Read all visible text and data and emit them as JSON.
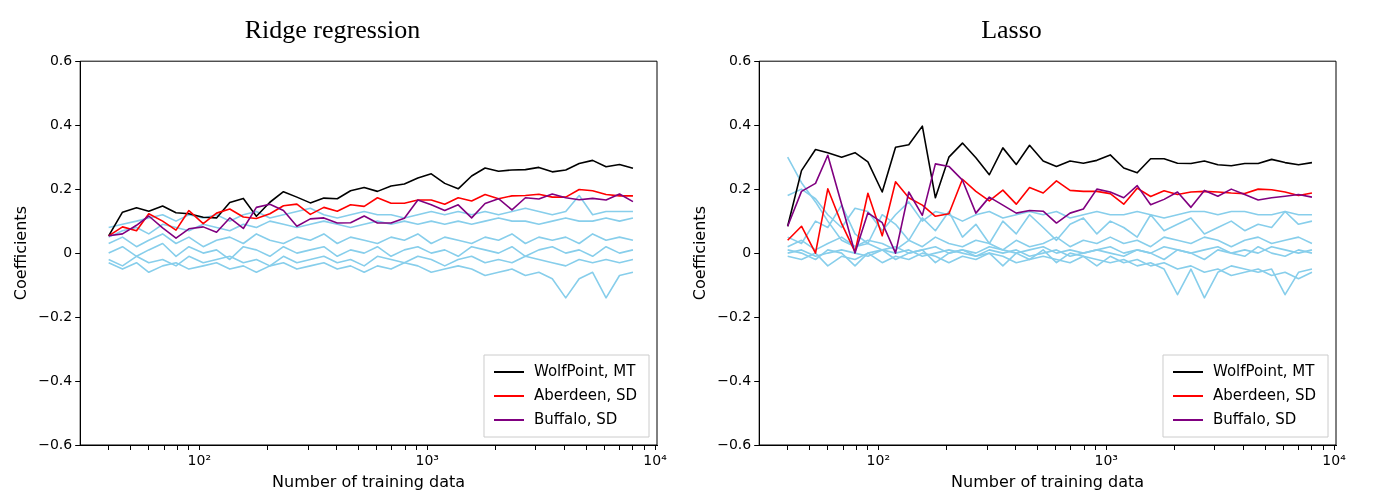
{
  "chart_data": [
    {
      "type": "line",
      "title": "Ridge regression",
      "xlabel": "Number of training data",
      "ylabel": "Coefficients",
      "log": "x",
      "legend": "bottom right",
      "x": [
        40,
        46,
        53,
        60,
        69,
        79,
        90,
        104,
        119,
        136,
        156,
        178,
        204,
        234,
        268,
        307,
        352,
        403,
        461,
        529,
        605,
        694,
        794,
        910,
        1042,
        1194,
        1368,
        1567,
        1795,
        2056,
        2355,
        2698,
        3091,
        3540,
        4056,
        4646,
        5322,
        6096,
        6984,
        8000
      ],
      "xlim": [
        30,
        10200
      ],
      "xticks": [
        {
          "value": 40,
          "label": null
        },
        {
          "value": 50,
          "label": null
        },
        {
          "value": 60,
          "label": null
        },
        {
          "value": 70,
          "label": null
        },
        {
          "value": 80,
          "label": null
        },
        {
          "value": 90,
          "label": null
        },
        {
          "value": 100,
          "label": "10²"
        },
        {
          "value": 200,
          "label": null
        },
        {
          "value": 300,
          "label": null
        },
        {
          "value": 400,
          "label": null
        },
        {
          "value": 500,
          "label": null
        },
        {
          "value": 600,
          "label": null
        },
        {
          "value": 700,
          "label": null
        },
        {
          "value": 800,
          "label": null
        },
        {
          "value": 900,
          "label": null
        },
        {
          "value": 1000,
          "label": "10³"
        },
        {
          "value": 2000,
          "label": null
        },
        {
          "value": 3000,
          "label": null
        },
        {
          "value": 4000,
          "label": null
        },
        {
          "value": 5000,
          "label": null
        },
        {
          "value": 6000,
          "label": null
        },
        {
          "value": 7000,
          "label": null
        },
        {
          "value": 8000,
          "label": null
        },
        {
          "value": 9000,
          "label": null
        },
        {
          "value": 10000,
          "label": "10⁴"
        }
      ],
      "ylim": [
        -0.6,
        0.6
      ],
      "yticks": [
        {
          "value": -0.6,
          "label": "−0.6"
        },
        {
          "value": -0.4,
          "label": "−0.4"
        },
        {
          "value": -0.2,
          "label": "−0.2"
        },
        0.0,
        0.2,
        0.4,
        0.6
      ],
      "series": [
        {
          "color": "#87ceeb",
          "values": [
            0.08,
            0.09,
            0.1,
            0.11,
            0.12,
            0.1,
            0.12,
            0.11,
            0.12,
            0.1,
            0.12,
            0.13,
            0.11,
            0.12,
            0.13,
            0.14,
            0.12,
            0.11,
            0.12,
            0.13,
            0.12,
            0.12,
            0.11,
            0.12,
            0.13,
            0.12,
            0.13,
            0.12,
            0.13,
            0.12,
            0.13,
            0.14,
            0.13,
            0.12,
            0.13,
            0.18,
            0.12,
            0.13,
            0.13,
            0.13
          ]
        },
        {
          "color": "#87ceeb",
          "values": [
            0.05,
            0.07,
            0.08,
            0.06,
            0.09,
            0.08,
            0.07,
            0.09,
            0.08,
            0.07,
            0.09,
            0.08,
            0.1,
            0.09,
            0.08,
            0.09,
            0.1,
            0.09,
            0.08,
            0.09,
            0.1,
            0.09,
            0.1,
            0.09,
            0.1,
            0.09,
            0.1,
            0.09,
            0.1,
            0.11,
            0.1,
            0.1,
            0.09,
            0.1,
            0.11,
            0.1,
            0.1,
            0.11,
            0.1,
            0.11
          ]
        },
        {
          "color": "#87ceeb",
          "values": [
            0.03,
            0.05,
            0.02,
            0.04,
            0.06,
            0.03,
            0.05,
            0.02,
            0.04,
            0.05,
            0.03,
            0.06,
            0.04,
            0.03,
            0.05,
            0.04,
            0.06,
            0.03,
            0.05,
            0.04,
            0.03,
            0.05,
            0.04,
            0.06,
            0.03,
            0.05,
            0.04,
            0.03,
            0.05,
            0.04,
            0.06,
            0.03,
            0.05,
            0.04,
            0.05,
            0.03,
            0.06,
            0.04,
            0.05,
            0.04
          ]
        },
        {
          "color": "#87ceeb",
          "values": [
            0.0,
            0.02,
            -0.01,
            0.01,
            0.03,
            -0.01,
            0.02,
            0.0,
            0.01,
            -0.02,
            0.02,
            0.01,
            -0.01,
            0.02,
            0.0,
            0.01,
            0.02,
            -0.01,
            0.01,
            0.0,
            0.02,
            -0.01,
            0.01,
            0.02,
            0.0,
            0.01,
            -0.01,
            0.02,
            0.01,
            0.0,
            0.02,
            -0.01,
            0.01,
            0.02,
            0.0,
            0.01,
            -0.01,
            0.02,
            0.0,
            0.01
          ]
        },
        {
          "color": "#87ceeb",
          "values": [
            -0.02,
            -0.04,
            -0.01,
            -0.03,
            -0.02,
            -0.04,
            -0.01,
            -0.03,
            -0.02,
            -0.01,
            -0.03,
            -0.02,
            -0.04,
            -0.01,
            -0.03,
            -0.02,
            -0.01,
            -0.03,
            -0.02,
            -0.04,
            -0.01,
            -0.02,
            -0.03,
            -0.01,
            -0.02,
            -0.04,
            -0.02,
            -0.01,
            -0.03,
            -0.02,
            -0.03,
            -0.01,
            -0.02,
            -0.03,
            -0.04,
            -0.02,
            -0.03,
            -0.02,
            -0.03,
            -0.02
          ]
        },
        {
          "color": "#87ceeb",
          "values": [
            -0.03,
            -0.05,
            -0.03,
            -0.06,
            -0.04,
            -0.03,
            -0.05,
            -0.04,
            -0.03,
            -0.05,
            -0.04,
            -0.06,
            -0.04,
            -0.03,
            -0.05,
            -0.04,
            -0.03,
            -0.05,
            -0.04,
            -0.06,
            -0.04,
            -0.05,
            -0.03,
            -0.04,
            -0.06,
            -0.05,
            -0.04,
            -0.05,
            -0.07,
            -0.06,
            -0.05,
            -0.07,
            -0.06,
            -0.08,
            -0.14,
            -0.08,
            -0.06,
            -0.14,
            -0.07,
            -0.06
          ]
        },
        {
          "color": "#000000",
          "name": "WolfPoint, MT",
          "values": [
            0.054,
            0.128,
            0.142,
            0.131,
            0.147,
            0.126,
            0.123,
            0.112,
            0.11,
            0.158,
            0.171,
            0.115,
            0.159,
            0.192,
            0.175,
            0.157,
            0.172,
            0.17,
            0.195,
            0.205,
            0.193,
            0.21,
            0.216,
            0.235,
            0.248,
            0.218,
            0.201,
            0.241,
            0.266,
            0.256,
            0.26,
            0.261,
            0.268,
            0.254,
            0.26,
            0.28,
            0.29,
            0.27,
            0.277,
            0.265
          ]
        },
        {
          "color": "#ff0000",
          "name": "Aberdeen, SD",
          "values": [
            0.054,
            0.082,
            0.07,
            0.123,
            0.1,
            0.072,
            0.133,
            0.092,
            0.125,
            0.138,
            0.113,
            0.108,
            0.123,
            0.148,
            0.153,
            0.121,
            0.143,
            0.131,
            0.151,
            0.146,
            0.173,
            0.156,
            0.156,
            0.166,
            0.166,
            0.153,
            0.173,
            0.163,
            0.183,
            0.17,
            0.179,
            0.18,
            0.184,
            0.175,
            0.175,
            0.199,
            0.195,
            0.183,
            0.179,
            0.179
          ]
        },
        {
          "color": "#800080",
          "name": "Buffalo, SD",
          "values": [
            0.054,
            0.06,
            0.087,
            0.116,
            0.079,
            0.047,
            0.076,
            0.082,
            0.065,
            0.11,
            0.077,
            0.143,
            0.153,
            0.133,
            0.084,
            0.107,
            0.11,
            0.094,
            0.095,
            0.116,
            0.094,
            0.094,
            0.109,
            0.166,
            0.151,
            0.133,
            0.151,
            0.11,
            0.155,
            0.17,
            0.135,
            0.173,
            0.169,
            0.185,
            0.173,
            0.167,
            0.171,
            0.166,
            0.185,
            0.161
          ]
        }
      ]
    },
    {
      "type": "line",
      "title": "Lasso",
      "xlabel": "Number of training data",
      "ylabel": "Coefficients",
      "log": "x",
      "legend": "bottom right",
      "x": [
        40,
        46,
        53,
        60,
        69,
        79,
        90,
        104,
        119,
        136,
        156,
        178,
        204,
        234,
        268,
        307,
        352,
        403,
        461,
        529,
        605,
        694,
        794,
        910,
        1042,
        1194,
        1368,
        1567,
        1795,
        2056,
        2355,
        2698,
        3091,
        3540,
        4056,
        4646,
        5322,
        6096,
        6984,
        8000
      ],
      "xlim": [
        30,
        10200
      ],
      "xticks": [
        {
          "value": 40,
          "label": null
        },
        {
          "value": 50,
          "label": null
        },
        {
          "value": 60,
          "label": null
        },
        {
          "value": 70,
          "label": null
        },
        {
          "value": 80,
          "label": null
        },
        {
          "value": 90,
          "label": null
        },
        {
          "value": 100,
          "label": "10²"
        },
        {
          "value": 200,
          "label": null
        },
        {
          "value": 300,
          "label": null
        },
        {
          "value": 400,
          "label": null
        },
        {
          "value": 500,
          "label": null
        },
        {
          "value": 600,
          "label": null
        },
        {
          "value": 700,
          "label": null
        },
        {
          "value": 800,
          "label": null
        },
        {
          "value": 900,
          "label": null
        },
        {
          "value": 1000,
          "label": "10³"
        },
        {
          "value": 2000,
          "label": null
        },
        {
          "value": 3000,
          "label": null
        },
        {
          "value": 4000,
          "label": null
        },
        {
          "value": 5000,
          "label": null
        },
        {
          "value": 6000,
          "label": null
        },
        {
          "value": 7000,
          "label": null
        },
        {
          "value": 8000,
          "label": null
        },
        {
          "value": 9000,
          "label": null
        },
        {
          "value": 10000,
          "label": "10⁴"
        }
      ],
      "ylim": [
        -0.6,
        0.6
      ],
      "yticks": [
        {
          "value": -0.6,
          "label": "−0.6"
        },
        {
          "value": -0.4,
          "label": "−0.4"
        },
        {
          "value": -0.2,
          "label": "−0.2"
        },
        0.0,
        0.2,
        0.4,
        0.6
      ],
      "series": [
        {
          "color": "#87ceeb",
          "values": [
            0.3,
            0.22,
            0.16,
            0.1,
            0.04,
            0.02,
            0.03,
            0.01,
            0.02,
            0.0,
            0.01,
            0.02,
            0.0,
            0.01,
            0.0,
            0.02,
            0.01,
            0.0,
            0.01,
            0.02,
            0.0,
            0.01,
            0.0,
            0.01,
            0.02,
            0.0,
            0.01,
            0.0,
            0.02,
            0.01,
            0.0,
            0.01,
            0.02,
            0.0,
            0.01,
            0.0,
            0.02,
            0.01,
            0.0,
            0.01
          ]
        },
        {
          "color": "#87ceeb",
          "values": [
            0.18,
            0.2,
            0.17,
            0.12,
            0.08,
            0.14,
            0.13,
            0.07,
            0.12,
            0.16,
            0.1,
            0.13,
            0.12,
            0.1,
            0.12,
            0.13,
            0.11,
            0.12,
            0.13,
            0.12,
            0.13,
            0.11,
            0.12,
            0.13,
            0.12,
            0.12,
            0.13,
            0.12,
            0.11,
            0.12,
            0.13,
            0.13,
            0.12,
            0.13,
            0.13,
            0.12,
            0.12,
            0.13,
            0.12,
            0.12
          ]
        },
        {
          "color": "#87ceeb",
          "values": [
            0.05,
            0.03,
            0.1,
            0.08,
            0.15,
            0.06,
            0.03,
            0.12,
            0.09,
            0.04,
            0.11,
            0.07,
            0.13,
            0.05,
            0.09,
            0.03,
            0.1,
            0.06,
            0.12,
            0.08,
            0.04,
            0.09,
            0.11,
            0.06,
            0.1,
            0.08,
            0.05,
            0.12,
            0.07,
            0.09,
            0.11,
            0.06,
            0.08,
            0.1,
            0.07,
            0.09,
            0.08,
            0.13,
            0.09,
            0.1
          ]
        },
        {
          "color": "#87ceeb",
          "values": [
            0.02,
            0.04,
            0.01,
            0.03,
            0.05,
            0.02,
            0.04,
            0.03,
            0.01,
            0.04,
            0.02,
            0.05,
            0.03,
            0.02,
            0.04,
            0.03,
            0.01,
            0.04,
            0.02,
            0.03,
            0.05,
            0.02,
            0.04,
            0.03,
            0.05,
            0.03,
            0.04,
            0.02,
            0.05,
            0.04,
            0.03,
            0.05,
            0.04,
            0.02,
            0.04,
            0.05,
            0.03,
            0.04,
            0.05,
            0.03
          ]
        },
        {
          "color": "#87ceeb",
          "values": [
            0.0,
            0.01,
            -0.01,
            0.0,
            0.01,
            0.0,
            -0.01,
            0.01,
            0.0,
            0.01,
            -0.01,
            0.0,
            0.01,
            0.0,
            -0.01,
            0.01,
            0.0,
            0.01,
            -0.01,
            0.0,
            0.01,
            -0.01,
            0.0,
            0.01,
            0.0,
            -0.01,
            0.01,
            0.0,
            -0.02,
            0.01,
            0.0,
            -0.02,
            0.01,
            0.0,
            -0.01,
            0.02,
            0.0,
            -0.01,
            0.01,
            0.0
          ]
        },
        {
          "color": "#87ceeb",
          "values": [
            -0.01,
            -0.02,
            0.0,
            -0.04,
            -0.01,
            -0.02,
            0.0,
            -0.03,
            -0.01,
            -0.02,
            0.0,
            -0.01,
            -0.03,
            -0.01,
            -0.02,
            0.0,
            -0.01,
            -0.03,
            -0.02,
            -0.01,
            -0.02,
            -0.03,
            -0.01,
            -0.02,
            -0.03,
            -0.02,
            -0.04,
            -0.03,
            -0.05,
            -0.13,
            -0.05,
            -0.14,
            -0.06,
            -0.04,
            -0.05,
            -0.06,
            -0.05,
            -0.13,
            -0.06,
            -0.05
          ]
        },
        {
          "color": "#87ceeb",
          "values": [
            0.01,
            0.0,
            -0.02,
            0.01,
            0.0,
            -0.04,
            0.0,
            0.01,
            -0.02,
            0.0,
            0.01,
            -0.03,
            0.0,
            0.01,
            -0.01,
            0.0,
            -0.04,
            0.0,
            -0.02,
            0.01,
            -0.03,
            0.0,
            -0.01,
            -0.04,
            -0.01,
            -0.03,
            -0.02,
            -0.04,
            -0.03,
            -0.05,
            -0.04,
            -0.06,
            -0.05,
            -0.07,
            -0.06,
            -0.05,
            -0.07,
            -0.06,
            -0.08,
            -0.06
          ]
        },
        {
          "color": "#000000",
          "name": "WolfPoint, MT",
          "values": [
            0.084,
            0.258,
            0.324,
            0.314,
            0.3,
            0.314,
            0.285,
            0.191,
            0.331,
            0.339,
            0.397,
            0.173,
            0.3,
            0.344,
            0.298,
            0.245,
            0.329,
            0.277,
            0.337,
            0.288,
            0.271,
            0.288,
            0.281,
            0.29,
            0.307,
            0.266,
            0.251,
            0.295,
            0.295,
            0.281,
            0.28,
            0.288,
            0.276,
            0.273,
            0.28,
            0.28,
            0.293,
            0.283,
            0.276,
            0.283
          ]
        },
        {
          "color": "#ff0000",
          "name": "Aberdeen, SD",
          "values": [
            0.04,
            0.084,
            0.0,
            0.201,
            0.092,
            0.004,
            0.187,
            0.054,
            0.223,
            0.173,
            0.15,
            0.115,
            0.123,
            0.231,
            0.193,
            0.163,
            0.197,
            0.153,
            0.205,
            0.188,
            0.226,
            0.196,
            0.193,
            0.193,
            0.186,
            0.153,
            0.203,
            0.177,
            0.195,
            0.183,
            0.191,
            0.193,
            0.191,
            0.188,
            0.186,
            0.2,
            0.198,
            0.191,
            0.18,
            0.188
          ]
        },
        {
          "color": "#800080",
          "name": "Buffalo, SD",
          "values": [
            0.084,
            0.193,
            0.218,
            0.306,
            0.153,
            0.0,
            0.126,
            0.095,
            0.0,
            0.191,
            0.118,
            0.279,
            0.271,
            0.228,
            0.125,
            0.175,
            0.15,
            0.125,
            0.133,
            0.131,
            0.094,
            0.125,
            0.138,
            0.2,
            0.191,
            0.173,
            0.211,
            0.151,
            0.168,
            0.191,
            0.143,
            0.196,
            0.178,
            0.2,
            0.183,
            0.166,
            0.173,
            0.178,
            0.183,
            0.175
          ]
        }
      ]
    }
  ]
}
